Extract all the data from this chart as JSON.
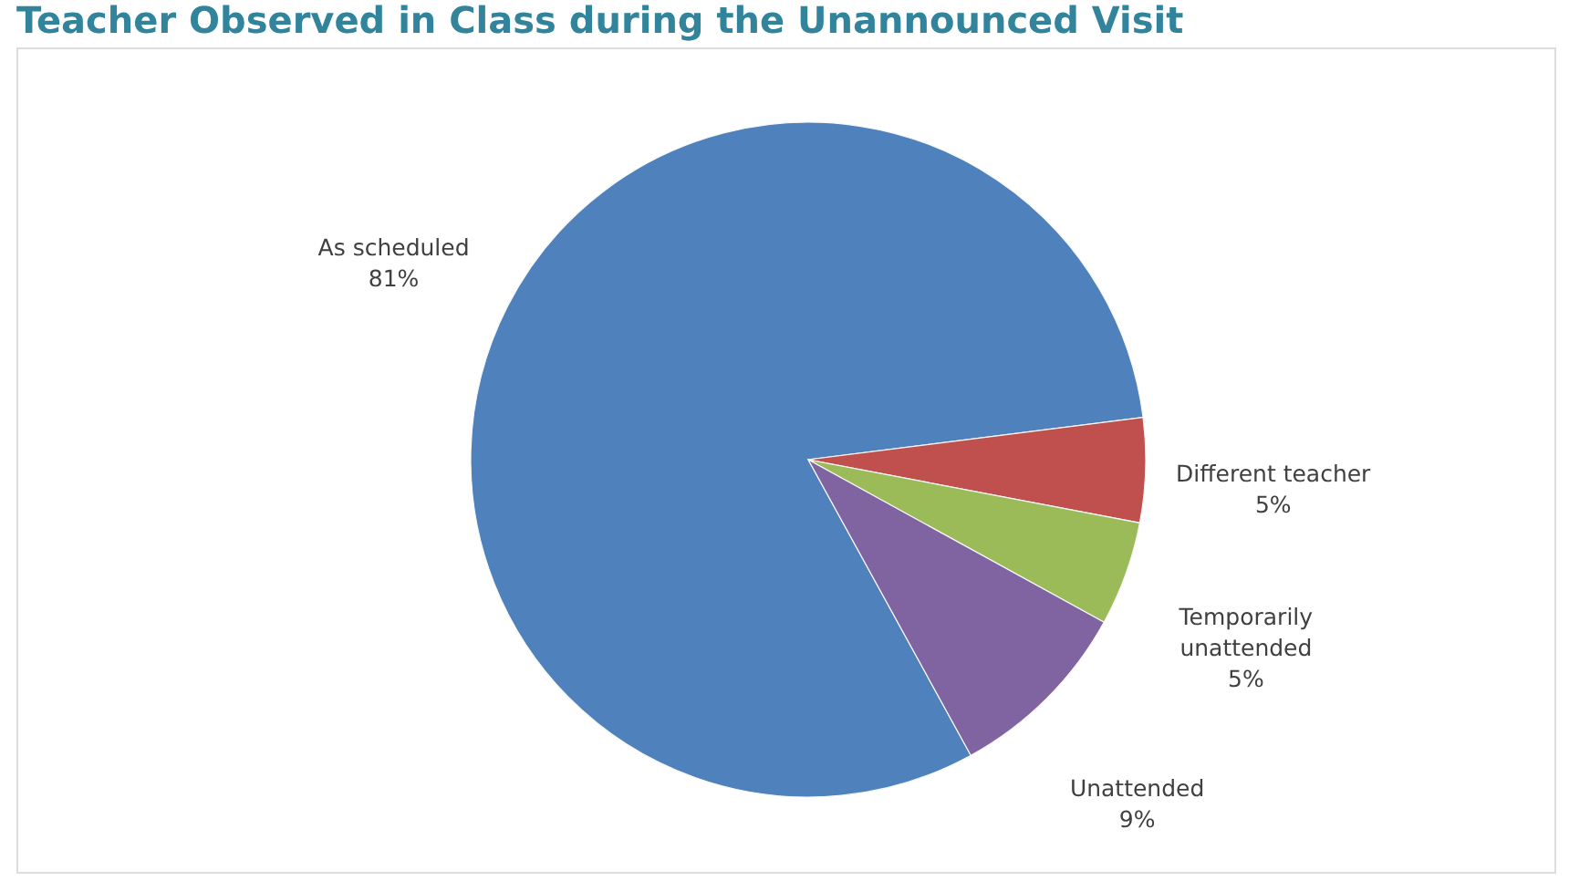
{
  "chart_data": {
    "type": "pie",
    "title": "Teacher Observed in Class during the Unannounced Visit",
    "categories": [
      "As scheduled",
      "Different teacher",
      "Temporarily unattended",
      "Unattended"
    ],
    "values": [
      81,
      5,
      5,
      9
    ],
    "colors": [
      "#4f81bd",
      "#c0504d",
      "#9bbb59",
      "#8064a2"
    ],
    "value_labels": [
      "81%",
      "5%",
      "5%",
      "9%"
    ]
  }
}
